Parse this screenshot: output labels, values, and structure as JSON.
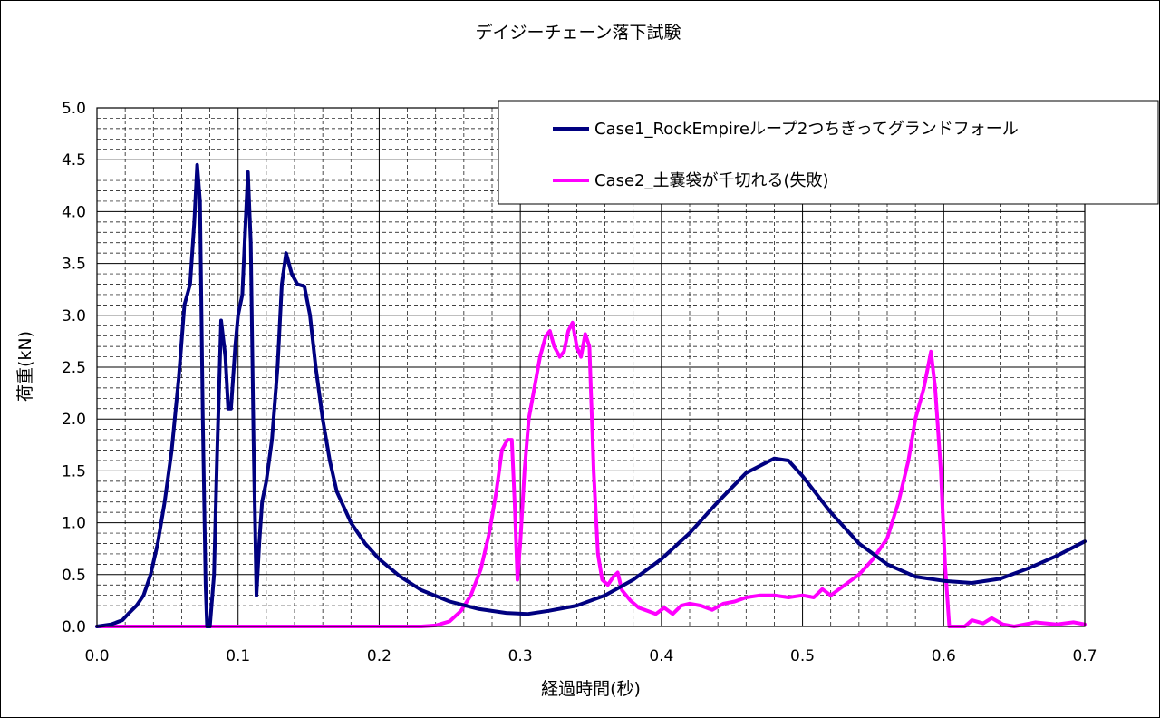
{
  "chart_data": {
    "type": "line",
    "title": "デイジーチェーン落下試験",
    "xlabel": "経過時間(秒)",
    "ylabel": "荷重(kN)",
    "xlim": [
      0,
      0.7
    ],
    "ylim": [
      0,
      5.0
    ],
    "x_ticks": [
      "0.0",
      "0.1",
      "0.2",
      "0.3",
      "0.4",
      "0.5",
      "0.6",
      "0.7"
    ],
    "y_ticks": [
      "0.0",
      "0.5",
      "1.0",
      "1.5",
      "2.0",
      "2.5",
      "3.0",
      "3.5",
      "4.0",
      "4.5",
      "5.0"
    ],
    "grid": true,
    "legend_position": "top-right",
    "series": [
      {
        "name": "Case1_RockEmpireループ2つちぎってグランドフォール",
        "color": "#000080",
        "points": [
          [
            0.0,
            0.0
          ],
          [
            0.01,
            0.02
          ],
          [
            0.018,
            0.06
          ],
          [
            0.022,
            0.12
          ],
          [
            0.028,
            0.2
          ],
          [
            0.033,
            0.3
          ],
          [
            0.038,
            0.5
          ],
          [
            0.043,
            0.8
          ],
          [
            0.048,
            1.2
          ],
          [
            0.053,
            1.7
          ],
          [
            0.058,
            2.4
          ],
          [
            0.062,
            3.1
          ],
          [
            0.066,
            3.3
          ],
          [
            0.069,
            3.9
          ],
          [
            0.071,
            4.45
          ],
          [
            0.073,
            4.1
          ],
          [
            0.075,
            2.0
          ],
          [
            0.077,
            0.4
          ],
          [
            0.078,
            0.0
          ],
          [
            0.08,
            0.0
          ],
          [
            0.083,
            0.5
          ],
          [
            0.085,
            1.6
          ],
          [
            0.088,
            2.95
          ],
          [
            0.091,
            2.6
          ],
          [
            0.093,
            2.1
          ],
          [
            0.095,
            2.1
          ],
          [
            0.098,
            2.7
          ],
          [
            0.1,
            3.0
          ],
          [
            0.103,
            3.2
          ],
          [
            0.105,
            3.8
          ],
          [
            0.107,
            4.38
          ],
          [
            0.109,
            3.7
          ],
          [
            0.111,
            1.8
          ],
          [
            0.113,
            0.3
          ],
          [
            0.115,
            0.8
          ],
          [
            0.117,
            1.2
          ],
          [
            0.12,
            1.4
          ],
          [
            0.124,
            1.8
          ],
          [
            0.128,
            2.5
          ],
          [
            0.131,
            3.3
          ],
          [
            0.134,
            3.6
          ],
          [
            0.138,
            3.4
          ],
          [
            0.142,
            3.3
          ],
          [
            0.147,
            3.28
          ],
          [
            0.151,
            3.0
          ],
          [
            0.155,
            2.5
          ],
          [
            0.16,
            2.0
          ],
          [
            0.165,
            1.6
          ],
          [
            0.17,
            1.3
          ],
          [
            0.18,
            1.0
          ],
          [
            0.19,
            0.8
          ],
          [
            0.2,
            0.65
          ],
          [
            0.215,
            0.48
          ],
          [
            0.23,
            0.35
          ],
          [
            0.25,
            0.24
          ],
          [
            0.27,
            0.17
          ],
          [
            0.29,
            0.13
          ],
          [
            0.305,
            0.12
          ],
          [
            0.32,
            0.15
          ],
          [
            0.34,
            0.2
          ],
          [
            0.36,
            0.3
          ],
          [
            0.38,
            0.45
          ],
          [
            0.4,
            0.65
          ],
          [
            0.42,
            0.9
          ],
          [
            0.44,
            1.2
          ],
          [
            0.46,
            1.48
          ],
          [
            0.48,
            1.62
          ],
          [
            0.49,
            1.6
          ],
          [
            0.5,
            1.45
          ],
          [
            0.52,
            1.1
          ],
          [
            0.54,
            0.8
          ],
          [
            0.56,
            0.6
          ],
          [
            0.58,
            0.48
          ],
          [
            0.6,
            0.44
          ],
          [
            0.62,
            0.42
          ],
          [
            0.64,
            0.46
          ],
          [
            0.66,
            0.56
          ],
          [
            0.68,
            0.68
          ],
          [
            0.7,
            0.82
          ]
        ]
      },
      {
        "name": "Case2_土嚢袋が千切れる(失敗)",
        "color": "#ff00ff",
        "points": [
          [
            0.0,
            0.0
          ],
          [
            0.23,
            0.0
          ],
          [
            0.24,
            0.01
          ],
          [
            0.25,
            0.05
          ],
          [
            0.258,
            0.15
          ],
          [
            0.265,
            0.3
          ],
          [
            0.272,
            0.55
          ],
          [
            0.278,
            0.9
          ],
          [
            0.283,
            1.3
          ],
          [
            0.287,
            1.7
          ],
          [
            0.291,
            1.8
          ],
          [
            0.294,
            1.8
          ],
          [
            0.296,
            1.2
          ],
          [
            0.298,
            0.45
          ],
          [
            0.3,
            0.8
          ],
          [
            0.303,
            1.5
          ],
          [
            0.306,
            2.0
          ],
          [
            0.31,
            2.3
          ],
          [
            0.314,
            2.6
          ],
          [
            0.318,
            2.8
          ],
          [
            0.321,
            2.85
          ],
          [
            0.324,
            2.7
          ],
          [
            0.328,
            2.6
          ],
          [
            0.331,
            2.65
          ],
          [
            0.334,
            2.85
          ],
          [
            0.337,
            2.93
          ],
          [
            0.34,
            2.7
          ],
          [
            0.343,
            2.6
          ],
          [
            0.346,
            2.82
          ],
          [
            0.349,
            2.7
          ],
          [
            0.352,
            1.5
          ],
          [
            0.355,
            0.7
          ],
          [
            0.358,
            0.45
          ],
          [
            0.362,
            0.4
          ],
          [
            0.366,
            0.48
          ],
          [
            0.369,
            0.52
          ],
          [
            0.372,
            0.35
          ],
          [
            0.378,
            0.25
          ],
          [
            0.384,
            0.18
          ],
          [
            0.39,
            0.15
          ],
          [
            0.396,
            0.12
          ],
          [
            0.402,
            0.18
          ],
          [
            0.408,
            0.12
          ],
          [
            0.414,
            0.2
          ],
          [
            0.42,
            0.22
          ],
          [
            0.428,
            0.2
          ],
          [
            0.436,
            0.16
          ],
          [
            0.444,
            0.22
          ],
          [
            0.452,
            0.24
          ],
          [
            0.46,
            0.28
          ],
          [
            0.47,
            0.3
          ],
          [
            0.48,
            0.3
          ],
          [
            0.49,
            0.28
          ],
          [
            0.5,
            0.3
          ],
          [
            0.508,
            0.28
          ],
          [
            0.514,
            0.36
          ],
          [
            0.52,
            0.3
          ],
          [
            0.53,
            0.4
          ],
          [
            0.54,
            0.5
          ],
          [
            0.55,
            0.65
          ],
          [
            0.56,
            0.85
          ],
          [
            0.568,
            1.2
          ],
          [
            0.575,
            1.6
          ],
          [
            0.58,
            2.0
          ],
          [
            0.586,
            2.3
          ],
          [
            0.591,
            2.65
          ],
          [
            0.594,
            2.3
          ],
          [
            0.598,
            1.5
          ],
          [
            0.601,
            0.6
          ],
          [
            0.604,
            0.0
          ],
          [
            0.615,
            0.0
          ],
          [
            0.62,
            0.06
          ],
          [
            0.628,
            0.03
          ],
          [
            0.634,
            0.08
          ],
          [
            0.642,
            0.02
          ],
          [
            0.65,
            0.0
          ],
          [
            0.665,
            0.04
          ],
          [
            0.68,
            0.02
          ],
          [
            0.692,
            0.04
          ],
          [
            0.7,
            0.02
          ]
        ]
      }
    ]
  }
}
